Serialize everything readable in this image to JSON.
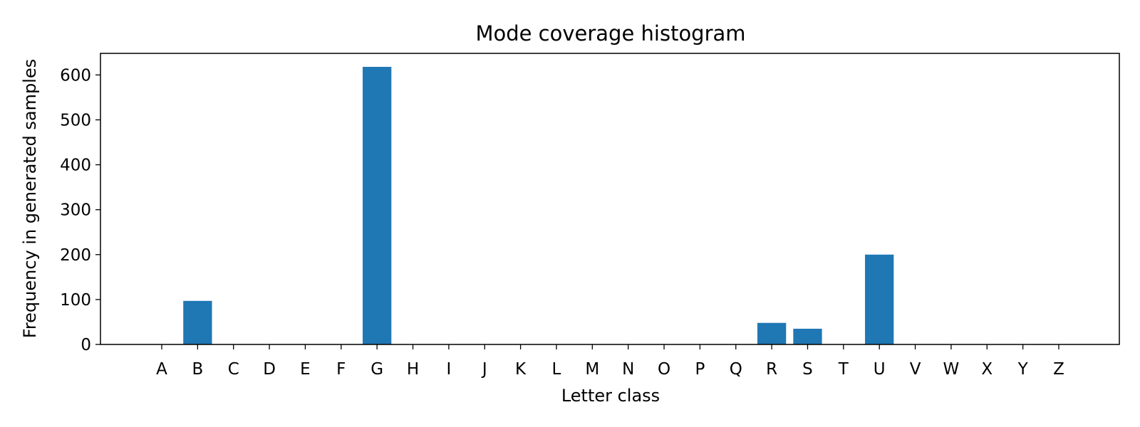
{
  "chart_data": {
    "type": "bar",
    "title": "Mode coverage histogram",
    "xlabel": "Letter class",
    "ylabel": "Frequency in generated samples",
    "categories": [
      "A",
      "B",
      "C",
      "D",
      "E",
      "F",
      "G",
      "H",
      "I",
      "J",
      "K",
      "L",
      "M",
      "N",
      "O",
      "P",
      "Q",
      "R",
      "S",
      "T",
      "U",
      "V",
      "W",
      "X",
      "Y",
      "Z"
    ],
    "values": [
      0,
      97,
      0,
      0,
      0,
      0,
      618,
      0,
      0,
      0,
      0,
      0,
      0,
      0,
      0,
      0,
      0,
      48,
      35,
      0,
      200,
      0,
      0,
      0,
      0,
      0
    ],
    "ylim": [
      0,
      648
    ],
    "yticks": [
      0,
      100,
      200,
      300,
      400,
      500,
      600
    ],
    "ytick_labels": [
      "0",
      "100",
      "200",
      "300",
      "400",
      "500",
      "600"
    ],
    "bar_color": "#1f77b4",
    "grid": false,
    "legend": "none"
  }
}
